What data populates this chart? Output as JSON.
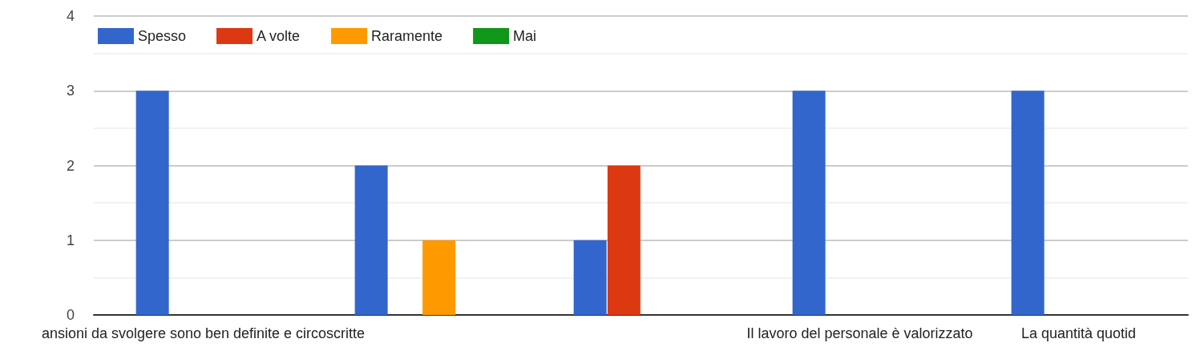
{
  "chart_data": {
    "type": "bar",
    "categories": [
      "ansioni da svolgere sono ben definite e circoscritte",
      null,
      null,
      "Il lavoro del personale è valorizzato",
      "La quantità quotid"
    ],
    "series": [
      {
        "name": "Spesso",
        "color": "#3366cc",
        "values": [
          3,
          2,
          1,
          3,
          3
        ]
      },
      {
        "name": "A volte",
        "color": "#dc3912",
        "values": [
          0,
          0,
          2,
          0,
          0
        ]
      },
      {
        "name": "Raramente",
        "color": "#ff9900",
        "values": [
          0,
          1,
          0,
          0,
          0
        ]
      },
      {
        "name": "Mai",
        "color": "#109618",
        "values": [
          0,
          0,
          0,
          0,
          0
        ]
      }
    ],
    "ylim": [
      0,
      4
    ],
    "yticks": [
      0,
      1,
      2,
      3,
      4
    ],
    "grid": true,
    "legend": "top left"
  }
}
